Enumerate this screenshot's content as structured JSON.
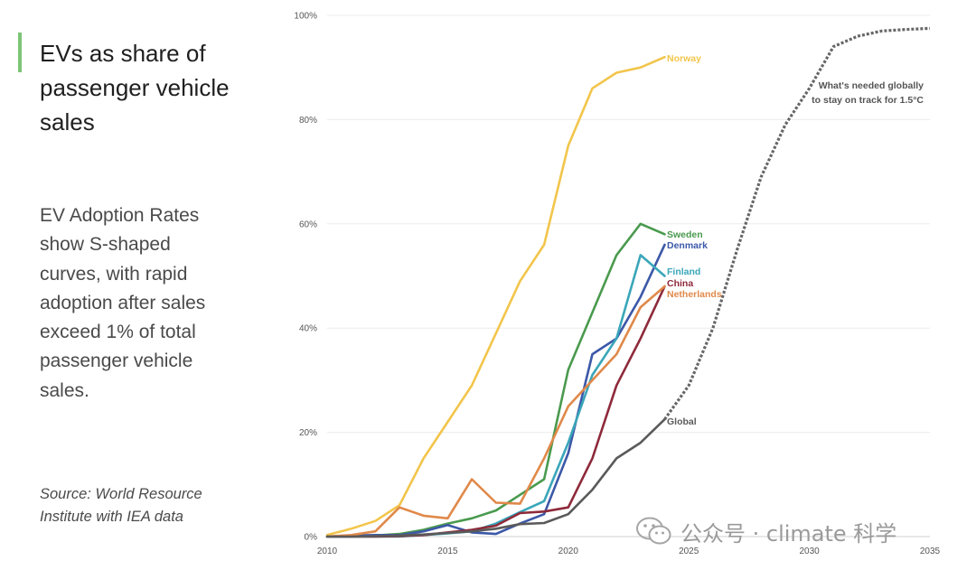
{
  "sidebar": {
    "title": "EVs as share of passenger vehicle sales",
    "body": "EV Adoption Rates show S-shaped curves, with rapid adoption after sales exceed 1% of total passenger vehicle sales.",
    "source": "Source: World Resource Institute with IEA data"
  },
  "watermark": {
    "text": "公众号 · climate 科学",
    "icon": "wechat-icon"
  },
  "chart_data": {
    "type": "line",
    "title": "",
    "xlabel": "",
    "ylabel": "",
    "xlim": [
      2010,
      2035
    ],
    "ylim": [
      0,
      100
    ],
    "x_ticks": [
      "2010",
      "2015",
      "2020",
      "2025",
      "2030",
      "2035"
    ],
    "y_ticks": [
      "0%",
      "20%",
      "40%",
      "60%",
      "80%",
      "100%"
    ],
    "grid": "horizontal",
    "legend": "inline labels at line ends",
    "series": [
      {
        "name": "Norway",
        "color": "#f2c54b",
        "x": [
          2010,
          2011,
          2012,
          2013,
          2014,
          2015,
          2016,
          2017,
          2018,
          2019,
          2020,
          2021,
          2022,
          2023,
          2024
        ],
        "y": [
          0.3,
          1.5,
          3,
          6,
          15,
          22,
          29,
          39,
          49,
          56,
          75,
          86,
          89,
          90,
          92
        ]
      },
      {
        "name": "Sweden",
        "color": "#4a9a4e",
        "x": [
          2010,
          2011,
          2012,
          2013,
          2014,
          2015,
          2016,
          2017,
          2018,
          2019,
          2020,
          2021,
          2022,
          2023,
          2024
        ],
        "y": [
          0,
          0,
          0.2,
          0.5,
          1.3,
          2.5,
          3.5,
          5,
          8,
          11,
          32,
          43,
          54,
          60,
          58
        ]
      },
      {
        "name": "Denmark",
        "color": "#3c58a8",
        "x": [
          2010,
          2011,
          2012,
          2013,
          2014,
          2015,
          2016,
          2017,
          2018,
          2019,
          2020,
          2021,
          2022,
          2023,
          2024
        ],
        "y": [
          0,
          0.2,
          0.3,
          0.3,
          1,
          2.2,
          0.8,
          0.5,
          2.5,
          4.3,
          16,
          35,
          38,
          46,
          56
        ]
      },
      {
        "name": "Finland",
        "color": "#3aa6b9",
        "x": [
          2010,
          2011,
          2012,
          2013,
          2014,
          2015,
          2016,
          2017,
          2018,
          2019,
          2020,
          2021,
          2022,
          2023,
          2024
        ],
        "y": [
          0,
          0,
          0,
          0,
          0.3,
          0.6,
          1,
          2.5,
          4.7,
          6.8,
          18,
          31,
          38,
          54,
          50
        ]
      },
      {
        "name": "China",
        "color": "#8e2a3a",
        "x": [
          2010,
          2011,
          2012,
          2013,
          2014,
          2015,
          2016,
          2017,
          2018,
          2019,
          2020,
          2021,
          2022,
          2023,
          2024
        ],
        "y": [
          0,
          0,
          0,
          0.1,
          0.3,
          0.8,
          1.3,
          2.1,
          4.5,
          4.8,
          5.6,
          15,
          29,
          38,
          48
        ]
      },
      {
        "name": "Netherlands",
        "color": "#e0894a",
        "x": [
          2010,
          2011,
          2012,
          2013,
          2014,
          2015,
          2016,
          2017,
          2018,
          2019,
          2020,
          2021,
          2022,
          2023,
          2024
        ],
        "y": [
          0,
          0.3,
          1,
          5.6,
          4,
          3.5,
          11,
          6.5,
          6.3,
          15,
          25,
          30,
          35,
          44,
          48
        ]
      },
      {
        "name": "Global",
        "color": "#5a5a5a",
        "x": [
          2010,
          2011,
          2012,
          2013,
          2014,
          2015,
          2016,
          2017,
          2018,
          2019,
          2020,
          2021,
          2022,
          2023,
          2024
        ],
        "y": [
          0,
          0,
          0.1,
          0.2,
          0.4,
          0.7,
          1,
          1.5,
          2.4,
          2.6,
          4.3,
          9,
          15,
          18,
          22.5
        ]
      },
      {
        "name": "What's needed globally to stay on track for 1.5°C",
        "color": "#666666",
        "style": "dotted",
        "x": [
          2024,
          2025,
          2026,
          2027,
          2028,
          2029,
          2030,
          2031,
          2032,
          2033,
          2034,
          2035
        ],
        "y": [
          22.5,
          29,
          40,
          55,
          69,
          79,
          86,
          94,
          96,
          97,
          97.3,
          97.5
        ]
      }
    ],
    "annotations": [
      {
        "text": "What's needed globally",
        "x": 2031.2,
        "y": 87
      },
      {
        "text": "to stay on track for 1.5°C",
        "x": 2031.2,
        "y": 84
      }
    ]
  }
}
